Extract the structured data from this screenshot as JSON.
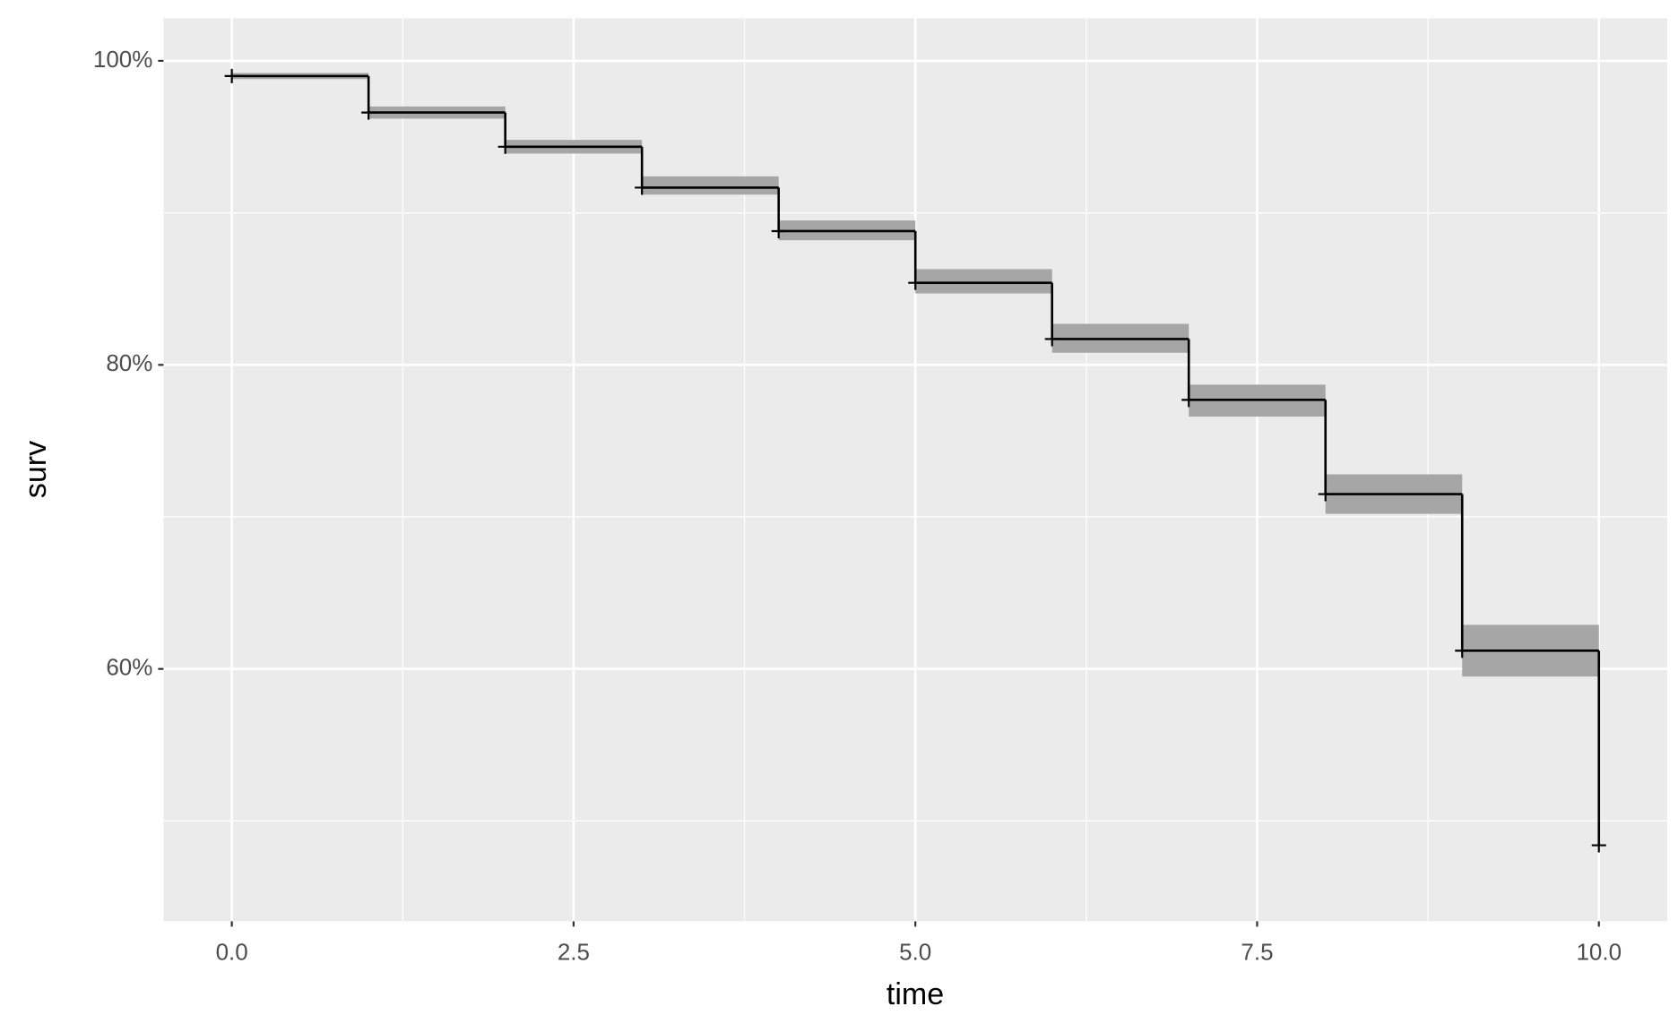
{
  "chart_data": {
    "type": "step",
    "xlabel": "time",
    "ylabel": "surv",
    "x": [
      0,
      1,
      2,
      3,
      4,
      5,
      6,
      7,
      8,
      9,
      10
    ],
    "values": [
      99.0,
      96.6,
      94.35,
      91.66,
      88.8,
      85.4,
      81.7,
      77.7,
      71.5,
      61.2,
      48.4
    ],
    "upper": [
      99.2,
      97.0,
      94.8,
      92.4,
      89.5,
      86.3,
      82.7,
      78.7,
      72.8,
      62.9,
      null
    ],
    "lower": [
      98.8,
      96.2,
      93.9,
      91.2,
      88.2,
      84.7,
      80.8,
      76.6,
      70.2,
      59.5,
      null
    ],
    "line_color": "#000000",
    "band_color": "#a6a6a6",
    "panel_color": "#ebebeb",
    "grid": true,
    "xlim": [
      -0.5,
      10.5
    ],
    "ylim": [
      43.4,
      102.8
    ],
    "xticks": [
      {
        "value": 0,
        "label": "0.0"
      },
      2.5,
      {
        "value": 5,
        "label": "5.0"
      },
      7.5,
      {
        "value": 10,
        "label": "10.0"
      }
    ],
    "yticks": [
      {
        "value": 60,
        "label": "60%"
      },
      {
        "value": 80,
        "label": "80%"
      },
      {
        "value": 100,
        "label": "100%"
      }
    ],
    "x_minor_grid": [
      1.25,
      3.75,
      6.25,
      8.75
    ],
    "y_minor_grid": [
      50,
      70,
      90
    ]
  }
}
